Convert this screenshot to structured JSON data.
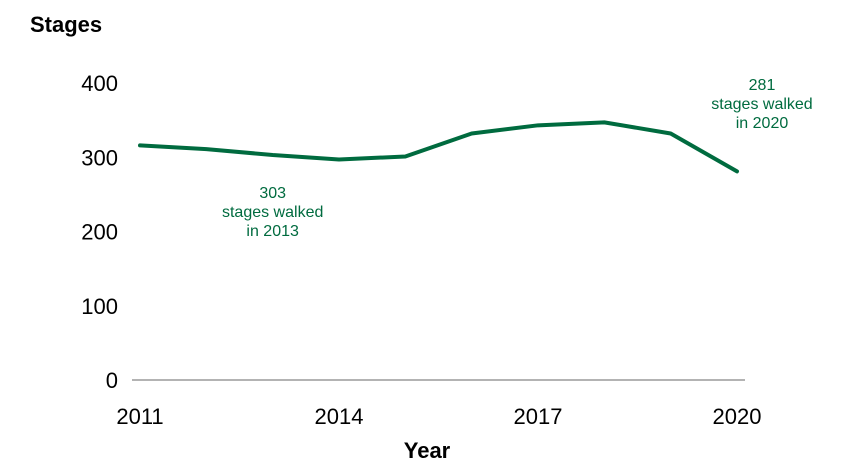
{
  "chart_data": {
    "type": "line",
    "ylabel": "Stages",
    "xlabel": "Year",
    "x": [
      2011,
      2012,
      2013,
      2014,
      2015,
      2016,
      2017,
      2018,
      2019,
      2020
    ],
    "series": [
      {
        "values": [
          316,
          311,
          303,
          297,
          301,
          332,
          343,
          347,
          332,
          281
        ]
      }
    ],
    "xticks": [
      2011,
      2014,
      2017,
      2020
    ],
    "yticks": [
      0,
      100,
      200,
      300,
      400
    ],
    "ylim": [
      0,
      400
    ],
    "xlim": [
      2011,
      2020
    ],
    "grid": false,
    "line_color": "#006b3f",
    "annotations": [
      {
        "year": 2013,
        "lines": [
          "303",
          "stages walked",
          "in 2013"
        ]
      },
      {
        "year": 2020,
        "lines": [
          "281",
          "stages walked",
          "in 2020"
        ]
      }
    ]
  }
}
